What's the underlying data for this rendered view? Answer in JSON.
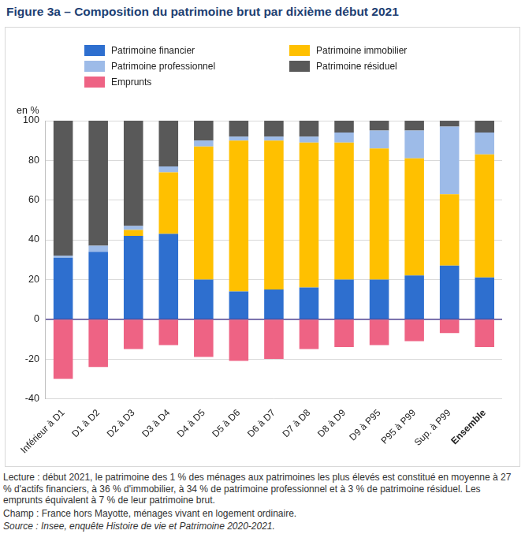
{
  "chart_data": {
    "type": "bar",
    "title": "Figure 3a – Composition du patrimoine brut par dixième début 2021",
    "y_label": "en %",
    "categories": [
      "Inférieur à D1",
      "D1 à D2",
      "D2 à D3",
      "D3 à D4",
      "D4 à D5",
      "D5 à D6",
      "D6 à D7",
      "D7 à D8",
      "D8 à D9",
      "D9 à P95",
      "P95 à P99",
      "Sup. à P99",
      "Ensemble"
    ],
    "series": [
      {
        "name": "Patrimoine financier",
        "color": "#2e6fcf",
        "values": [
          31,
          34,
          42,
          43,
          20,
          14,
          15,
          16,
          20,
          20,
          22,
          27,
          21
        ]
      },
      {
        "name": "Patrimoine immobilier",
        "color": "#ffc000",
        "values": [
          0,
          0,
          3,
          31,
          67,
          76,
          75,
          73,
          69,
          66,
          59,
          36,
          62
        ]
      },
      {
        "name": "Patrimoine professionnel",
        "color": "#9dbbe8",
        "values": [
          1,
          3,
          2,
          3,
          3,
          2,
          2,
          3,
          5,
          9,
          14,
          34,
          11
        ]
      },
      {
        "name": "Patrimoine résiduel",
        "color": "#595959",
        "values": [
          68,
          63,
          53,
          23,
          10,
          8,
          8,
          8,
          6,
          5,
          5,
          3,
          6
        ]
      },
      {
        "name": "Emprunts",
        "color": "#ee6384",
        "values": [
          -30,
          -24,
          -15,
          -13,
          -19,
          -21,
          -20,
          -15,
          -14,
          -13,
          -11,
          -7,
          -14
        ]
      }
    ],
    "ylim": [
      -40,
      100
    ],
    "yticks": [
      -40,
      -20,
      0,
      20,
      40,
      60,
      80,
      100
    ],
    "stacked": true,
    "grid": true,
    "legend": "top-left",
    "notes": [
      "Lecture : début 2021, le patrimoine des 1 % des ménages aux patrimoines les plus élevés est constitué en moyenne à 27 % d'actifs financiers, à 36 % d'immobilier, à 34 % de patrimoine professionnel et à 3 % de patrimoine résiduel. Les emprunts équivalent à 7 % de leur patrimoine brut.",
      "Champ : France hors Mayotte, ménages vivant en logement ordinaire.",
      "Source : Insee, enquête Histoire de vie et Patrimoine 2020-2021."
    ]
  }
}
